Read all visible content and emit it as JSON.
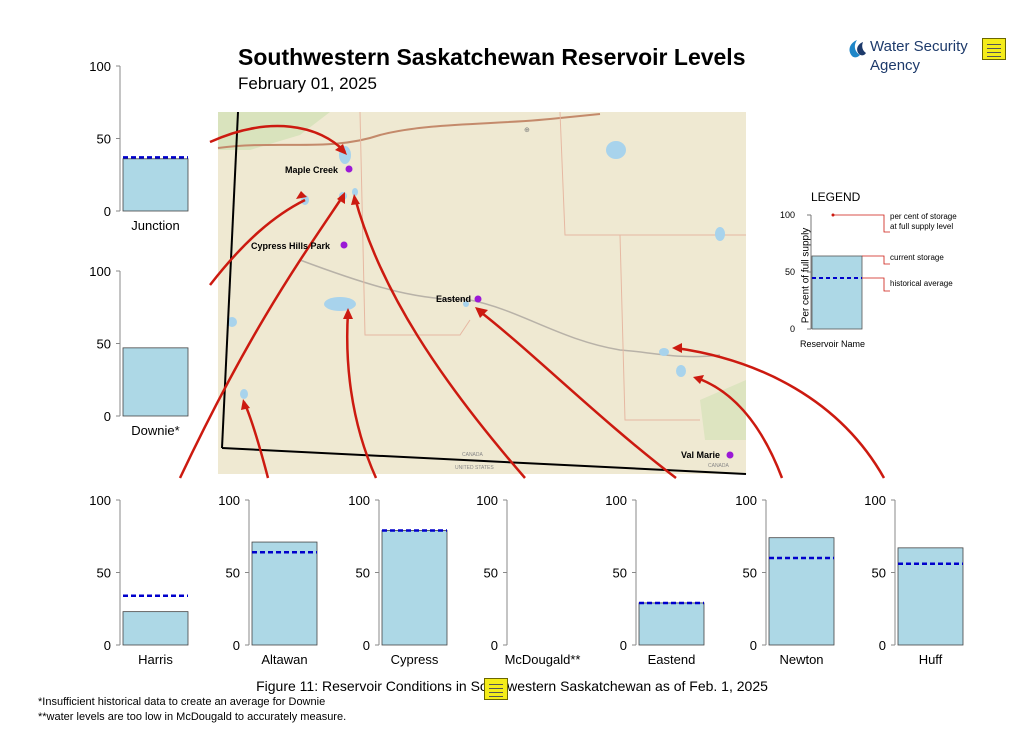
{
  "title": "Southwestern Saskatchewan Reservoir Levels",
  "subtitle": "February 01, 2025",
  "logo": {
    "line1": "Water Security",
    "line2": "Agency"
  },
  "caption": "Figure 11: Reservoir Conditions in Southwestern Saskatchewan as of Feb. 1, 2025",
  "footnotes": [
    "*Insufficient historical data to create an average for Downie",
    "**water levels are too low in McDougald to accurately measure."
  ],
  "map": {
    "places": [
      "Maple Creek",
      "Cypress Hills Park",
      "Eastend",
      "Val Marie"
    ],
    "border_labels": {
      "top": "CANADA",
      "bottom": "UNITED STATES",
      "right": "CANADA"
    }
  },
  "legend": {
    "title": "LEGEND",
    "ylabel": "Per cent of full supply",
    "xlabel": "Reservoir Name",
    "ticks": [
      "100",
      "50",
      "0"
    ],
    "notes": [
      "per cent of storage",
      "at full supply level",
      "current storage",
      "historical average"
    ]
  },
  "colors": {
    "bar": "#add8e6",
    "average": "#0000cc",
    "arrow": "#cc1a10",
    "dot": "#9b19d6"
  },
  "chart_data": {
    "type": "bar",
    "ylabel": "Per cent of full supply",
    "ylim": [
      0,
      100
    ],
    "ticks": [
      0,
      50,
      100
    ],
    "categories": [
      "Junction",
      "Downie",
      "Harris",
      "Altawan",
      "Cypress",
      "McDougald",
      "Eastend",
      "Newton",
      "Huff"
    ],
    "display_labels": [
      "Junction",
      "Downie*",
      "Harris",
      "Altawan",
      "Cypress",
      "McDougald**",
      "Eastend",
      "Newton",
      "Huff"
    ],
    "series": [
      {
        "name": "current storage",
        "values": [
          36,
          47,
          23,
          71,
          79,
          null,
          29,
          74,
          67
        ]
      },
      {
        "name": "historical average",
        "values": [
          37,
          null,
          34,
          64,
          79,
          null,
          29,
          60,
          56
        ]
      }
    ]
  }
}
